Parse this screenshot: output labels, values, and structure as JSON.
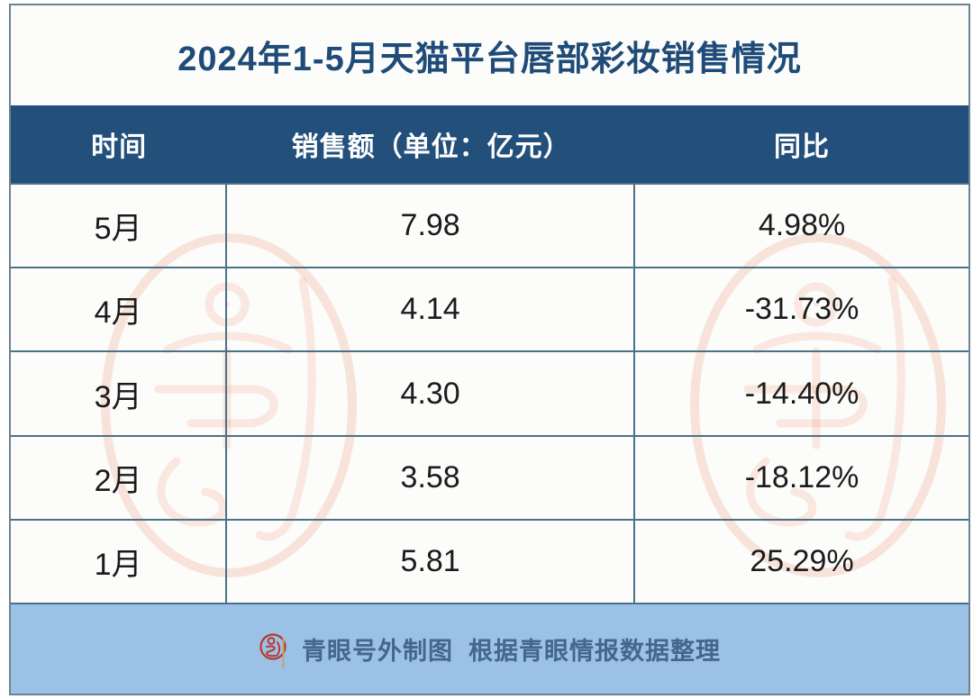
{
  "title": "2024年1-5月天猫平台唇部彩妆销售情况",
  "table": {
    "columns": [
      "时间",
      "销售额（单位：亿元）",
      "同比"
    ],
    "rows": [
      {
        "month": "5月",
        "sales": "7.98",
        "yoy": "4.98%"
      },
      {
        "month": "4月",
        "sales": "4.14",
        "yoy": "-31.73%"
      },
      {
        "month": "3月",
        "sales": "4.30",
        "yoy": "-14.40%"
      },
      {
        "month": "2月",
        "sales": "3.58",
        "yoy": "-18.12%"
      },
      {
        "month": "1月",
        "sales": "5.81",
        "yoy": "25.29%"
      }
    ]
  },
  "footer": {
    "text": "青眼号外制图  根据青眼情报数据整理",
    "logo": "qingyan-seal-icon"
  },
  "colors": {
    "header_bg": "#234F7B",
    "footer_bg": "#9CC1E7",
    "title_text": "#1E4B77",
    "grid_line": "#4A7287",
    "outer_border": "#6E8292",
    "cell_text": "#1B1B1B",
    "footer_text": "#44688C",
    "logo_red": "#B8392C",
    "watermark": "#EC8060"
  },
  "chart_data": {
    "type": "table",
    "title": "2024年1-5月天猫平台唇部彩妆销售情况",
    "columns": [
      "时间",
      "销售额（单位：亿元）",
      "同比"
    ],
    "rows": [
      [
        "5月",
        7.98,
        "4.98%"
      ],
      [
        "4月",
        4.14,
        "-31.73%"
      ],
      [
        "3月",
        4.3,
        "-14.40%"
      ],
      [
        "2月",
        3.58,
        "-18.12%"
      ],
      [
        "1月",
        5.81,
        "25.29%"
      ]
    ],
    "series": [
      {
        "name": "销售额（亿元）",
        "values": [
          7.98,
          4.14,
          4.3,
          3.58,
          5.81
        ]
      },
      {
        "name": "同比",
        "values": [
          4.98,
          -31.73,
          -14.4,
          -18.12,
          25.29
        ]
      }
    ],
    "categories": [
      "5月",
      "4月",
      "3月",
      "2月",
      "1月"
    ],
    "source_note": "青眼号外制图  根据青眼情报数据整理"
  }
}
